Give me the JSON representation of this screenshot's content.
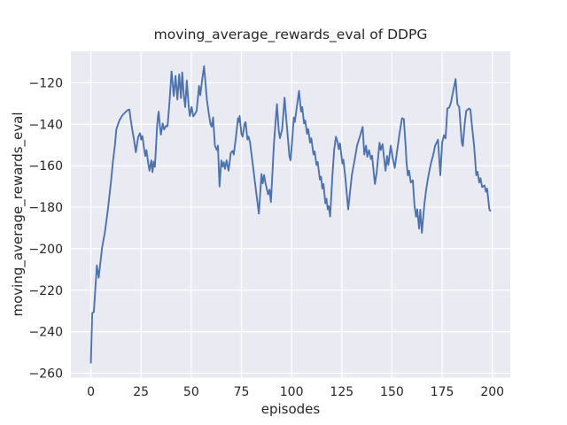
{
  "chart_data": {
    "type": "line",
    "title": "moving_average_rewards_eval of DDPG",
    "xlabel": "episodes",
    "ylabel": "moving_average_rewards_eval",
    "grid": true,
    "legend": "none",
    "xlim": [
      -9.95,
      208.95
    ],
    "ylim": [
      -262.15,
      -104.85
    ],
    "xticks": [
      0,
      25,
      50,
      75,
      100,
      125,
      150,
      175,
      200
    ],
    "xtick_labels": [
      "0",
      "25",
      "50",
      "75",
      "100",
      "125",
      "150",
      "175",
      "200"
    ],
    "yticks": [
      -120,
      -140,
      -160,
      -180,
      -200,
      -220,
      -240,
      -260
    ],
    "ytick_labels": [
      "−120",
      "−140",
      "−160",
      "−180",
      "−200",
      "−220",
      "−240",
      "−260"
    ],
    "style": {
      "line_color": "#4c72b0",
      "plot_bg": "#eaeaf2",
      "grid_color": "#ffffff",
      "fig_bg": "#ffffff",
      "text_color": "#262626",
      "line_width": 1.9
    },
    "series": [
      {
        "name": "DDPG moving_average_rewards_eval",
        "color": "#4c72b0",
        "points": [
          [
            0,
            -255
          ],
          [
            0.7,
            -231
          ],
          [
            1.5,
            -230.5
          ],
          [
            3,
            -208
          ],
          [
            3.9,
            -214
          ],
          [
            5.6,
            -199.5
          ],
          [
            7,
            -192
          ],
          [
            8.5,
            -181
          ],
          [
            10,
            -168
          ],
          [
            11,
            -158
          ],
          [
            12,
            -150
          ],
          [
            12.7,
            -142.4
          ],
          [
            14.2,
            -138.2
          ],
          [
            15.7,
            -135.7
          ],
          [
            17.1,
            -134.3
          ],
          [
            18.3,
            -133.2
          ],
          [
            19.2,
            -132.9
          ],
          [
            19.8,
            -137.4
          ],
          [
            20.6,
            -142.4
          ],
          [
            21.5,
            -147.4
          ],
          [
            22.4,
            -153.5
          ],
          [
            23.6,
            -146
          ],
          [
            24.5,
            -144.3
          ],
          [
            25.1,
            -147.4
          ],
          [
            25.7,
            -145.7
          ],
          [
            26.5,
            -151.7
          ],
          [
            27.1,
            -155.3
          ],
          [
            27.7,
            -152.4
          ],
          [
            28.6,
            -158.9
          ],
          [
            29.2,
            -162.4
          ],
          [
            30.1,
            -157.4
          ],
          [
            30.7,
            -163.1
          ],
          [
            31.3,
            -158
          ],
          [
            31.9,
            -160.5
          ],
          [
            32.4,
            -152
          ],
          [
            33,
            -141
          ],
          [
            33.4,
            -136.5
          ],
          [
            33.8,
            -133.9
          ],
          [
            34.4,
            -141
          ],
          [
            34.9,
            -145
          ],
          [
            35.8,
            -139.6
          ],
          [
            36.5,
            -142.5
          ],
          [
            37.4,
            -140.8
          ],
          [
            38.2,
            -141
          ],
          [
            39.2,
            -129
          ],
          [
            40.2,
            -114.5
          ],
          [
            41.3,
            -126.4
          ],
          [
            42.2,
            -116.7
          ],
          [
            43.1,
            -128.1
          ],
          [
            44,
            -116
          ],
          [
            44.9,
            -127.4
          ],
          [
            45.5,
            -115
          ],
          [
            46.4,
            -127
          ],
          [
            47,
            -131.7
          ],
          [
            47.8,
            -118.9
          ],
          [
            48.7,
            -131
          ],
          [
            49.3,
            -136
          ],
          [
            50.2,
            -131.7
          ],
          [
            51,
            -136.2
          ],
          [
            52,
            -134.8
          ],
          [
            52.7,
            -133.5
          ],
          [
            53.9,
            -121.5
          ],
          [
            54.5,
            -126
          ],
          [
            55.4,
            -119
          ],
          [
            56.4,
            -112
          ],
          [
            57.8,
            -128.1
          ],
          [
            58.7,
            -134.5
          ],
          [
            59.6,
            -140
          ],
          [
            60.2,
            -141.2
          ],
          [
            60.9,
            -136.7
          ],
          [
            61.8,
            -150.3
          ],
          [
            62.7,
            -152.4
          ],
          [
            63.3,
            -150.3
          ],
          [
            64.1,
            -170
          ],
          [
            65,
            -157.4
          ],
          [
            65.6,
            -160.4
          ],
          [
            66.2,
            -158.3
          ],
          [
            66.8,
            -161.5
          ],
          [
            67.6,
            -157.4
          ],
          [
            68.6,
            -162.4
          ],
          [
            69.7,
            -153.8
          ],
          [
            70.6,
            -152.8
          ],
          [
            71.2,
            -154.6
          ],
          [
            72.3,
            -146
          ],
          [
            73.3,
            -137.1
          ],
          [
            73.7,
            -138.8
          ],
          [
            74.1,
            -136
          ],
          [
            75,
            -144.6
          ],
          [
            75.6,
            -146
          ],
          [
            76.6,
            -139.6
          ],
          [
            77.1,
            -139
          ],
          [
            78,
            -147.4
          ],
          [
            78.6,
            -146
          ],
          [
            79.3,
            -148.8
          ],
          [
            80.5,
            -158
          ],
          [
            82,
            -170
          ],
          [
            83.7,
            -183.1
          ],
          [
            85,
            -164
          ],
          [
            85.6,
            -168.5
          ],
          [
            86.3,
            -164.5
          ],
          [
            86.9,
            -168
          ],
          [
            88.3,
            -173.8
          ],
          [
            89,
            -171.5
          ],
          [
            89.7,
            -177.5
          ],
          [
            91.2,
            -149.6
          ],
          [
            92.7,
            -130.3
          ],
          [
            93.6,
            -143.1
          ],
          [
            94.2,
            -146.7
          ],
          [
            95.3,
            -142.4
          ],
          [
            96.5,
            -127.2
          ],
          [
            97.4,
            -138
          ],
          [
            98.9,
            -155.3
          ],
          [
            99.5,
            -157.4
          ],
          [
            100.6,
            -143.9
          ],
          [
            101.1,
            -136.7
          ],
          [
            101.6,
            -138.9
          ],
          [
            103.7,
            -123.9
          ],
          [
            104.7,
            -133.9
          ],
          [
            105.3,
            -131.7
          ],
          [
            106.2,
            -139.6
          ],
          [
            106.8,
            -138.2
          ],
          [
            107.7,
            -144.6
          ],
          [
            108.3,
            -142.4
          ],
          [
            109.2,
            -148.9
          ],
          [
            109.8,
            -146.7
          ],
          [
            110.9,
            -154.6
          ],
          [
            111.5,
            -153.1
          ],
          [
            112.4,
            -159.6
          ],
          [
            113,
            -158.2
          ],
          [
            114.1,
            -166.7
          ],
          [
            114.7,
            -165.3
          ],
          [
            115.3,
            -171
          ],
          [
            115.9,
            -168.8
          ],
          [
            116.8,
            -178.1
          ],
          [
            117.4,
            -175.9
          ],
          [
            118,
            -181
          ],
          [
            118.5,
            -179.5
          ],
          [
            119.2,
            -184.5
          ],
          [
            120.3,
            -165.3
          ],
          [
            121.2,
            -152.4
          ],
          [
            122.1,
            -146
          ],
          [
            122.9,
            -148.6
          ],
          [
            123.5,
            -152
          ],
          [
            124.1,
            -149.2
          ],
          [
            125.3,
            -158.9
          ],
          [
            125.8,
            -157.1
          ],
          [
            126.8,
            -166
          ],
          [
            128.2,
            -181
          ],
          [
            130,
            -164.6
          ],
          [
            131.5,
            -156.7
          ],
          [
            132.6,
            -150.3
          ],
          [
            134,
            -146
          ],
          [
            135.4,
            -141.3
          ],
          [
            136.2,
            -154.6
          ],
          [
            137.1,
            -150.3
          ],
          [
            137.7,
            -155.7
          ],
          [
            138.6,
            -152.5
          ],
          [
            139.5,
            -156.8
          ],
          [
            140.1,
            -155.2
          ],
          [
            140.9,
            -163.1
          ],
          [
            141.5,
            -168.8
          ],
          [
            142.4,
            -163.1
          ],
          [
            143.8,
            -148.9
          ],
          [
            144.4,
            -152.4
          ],
          [
            145.3,
            -149.6
          ],
          [
            146.2,
            -157.4
          ],
          [
            146.8,
            -162.4
          ],
          [
            147.6,
            -155.3
          ],
          [
            148.2,
            -159.6
          ],
          [
            149.4,
            -150.3
          ],
          [
            150.3,
            -156
          ],
          [
            151.4,
            -161
          ],
          [
            152.4,
            -154
          ],
          [
            154,
            -143
          ],
          [
            155,
            -137.1
          ],
          [
            155.9,
            -137.5
          ],
          [
            156.8,
            -150.3
          ],
          [
            157.3,
            -158.9
          ],
          [
            157.9,
            -164.6
          ],
          [
            158.5,
            -162.4
          ],
          [
            159.4,
            -168.1
          ],
          [
            160.4,
            -167
          ],
          [
            161.2,
            -178.9
          ],
          [
            162,
            -184.6
          ],
          [
            162.6,
            -181
          ],
          [
            163.5,
            -190.3
          ],
          [
            164.1,
            -181.2
          ],
          [
            164.9,
            -192.4
          ],
          [
            166.1,
            -179
          ],
          [
            167,
            -171.7
          ],
          [
            168.2,
            -164.6
          ],
          [
            169.4,
            -158.9
          ],
          [
            170.6,
            -154.6
          ],
          [
            171.5,
            -150.3
          ],
          [
            172.4,
            -148.6
          ],
          [
            172.9,
            -147.4
          ],
          [
            174.1,
            -164.6
          ],
          [
            175,
            -148.9
          ],
          [
            175.9,
            -145.3
          ],
          [
            176.7,
            -146.8
          ],
          [
            177.6,
            -132.4
          ],
          [
            178.5,
            -132
          ],
          [
            179.4,
            -129.5
          ],
          [
            180.5,
            -124
          ],
          [
            181.7,
            -118.2
          ],
          [
            182.6,
            -130.3
          ],
          [
            183.5,
            -131.7
          ],
          [
            184.8,
            -149
          ],
          [
            185.3,
            -150.5
          ],
          [
            186.2,
            -140
          ],
          [
            187,
            -133.5
          ],
          [
            188.5,
            -132.4
          ],
          [
            189.1,
            -133
          ],
          [
            189.8,
            -140.3
          ],
          [
            190.9,
            -150.3
          ],
          [
            192,
            -164.6
          ],
          [
            192.6,
            -162.9
          ],
          [
            193.5,
            -168.1
          ],
          [
            194.1,
            -166
          ],
          [
            194.9,
            -170.3
          ],
          [
            196.1,
            -169.5
          ],
          [
            196.8,
            -172.5
          ],
          [
            197.4,
            -171
          ],
          [
            198.5,
            -181
          ],
          [
            199,
            -181.7
          ]
        ]
      }
    ]
  }
}
